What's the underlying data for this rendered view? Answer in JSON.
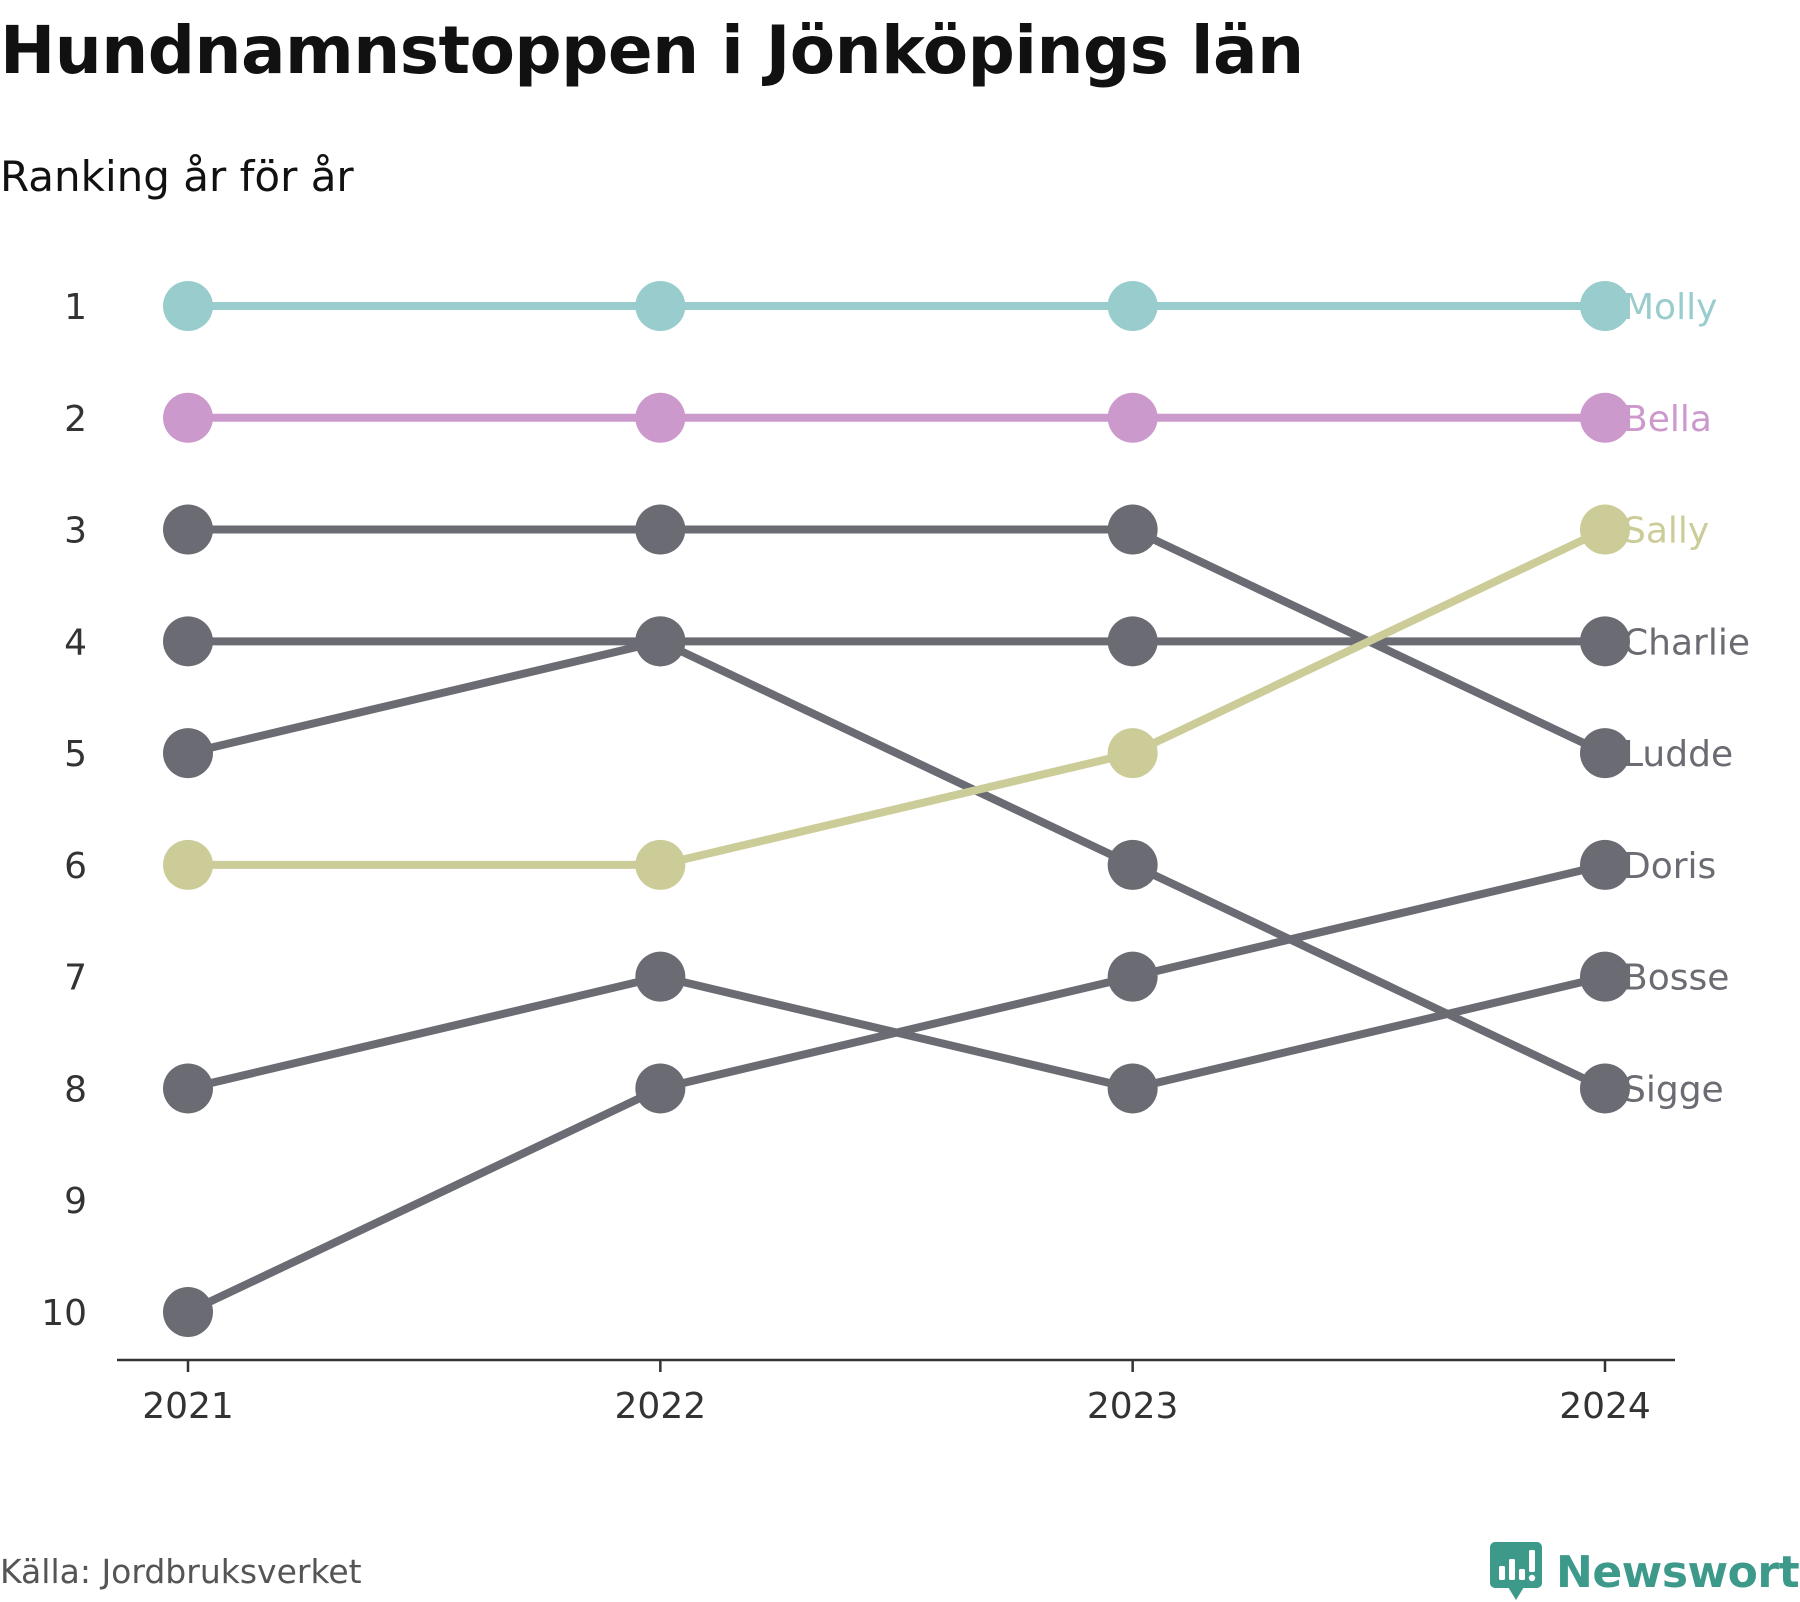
{
  "header": {
    "title": "Hundnamnstoppen i Jönköpings län",
    "subtitle": "Ranking år för år"
  },
  "footer": {
    "source": "Källa: Jordbruksverket",
    "brand": "Newsworthy",
    "brand_color": "#3d9a8b",
    "brand_icon": "bar-chart-speech-bubble-icon"
  },
  "chart_data": {
    "type": "line",
    "x": [
      "2021",
      "2022",
      "2023",
      "2024"
    ],
    "y_ticks": [
      1,
      2,
      3,
      4,
      5,
      6,
      7,
      8,
      9,
      10
    ],
    "ylim": [
      1,
      10
    ],
    "y_inverted": true,
    "grid": false,
    "legend": "end-labels",
    "title": "Hundnamnstoppen i Jönköpings län",
    "subtitle": "Ranking år för år",
    "series": [
      {
        "name": "Molly",
        "values": [
          1,
          1,
          1,
          1
        ],
        "color": "#99cccc"
      },
      {
        "name": "Bella",
        "values": [
          2,
          2,
          2,
          2
        ],
        "color": "#cc99cc"
      },
      {
        "name": "Sally",
        "values": [
          6,
          6,
          5,
          3
        ],
        "color": "#cccc99"
      },
      {
        "name": "Charlie",
        "values": [
          4,
          4,
          4,
          4
        ],
        "color": "#6b6b73"
      },
      {
        "name": "Ludde",
        "values": [
          3,
          3,
          3,
          5
        ],
        "color": "#6b6b73"
      },
      {
        "name": "Doris",
        "values": [
          10,
          8,
          7,
          6
        ],
        "color": "#6b6b73"
      },
      {
        "name": "Bosse",
        "values": [
          8,
          7,
          8,
          7
        ],
        "color": "#6b6b73"
      },
      {
        "name": "Sigge",
        "values": [
          5,
          4,
          6,
          8
        ],
        "color": "#6b6b73"
      }
    ]
  }
}
